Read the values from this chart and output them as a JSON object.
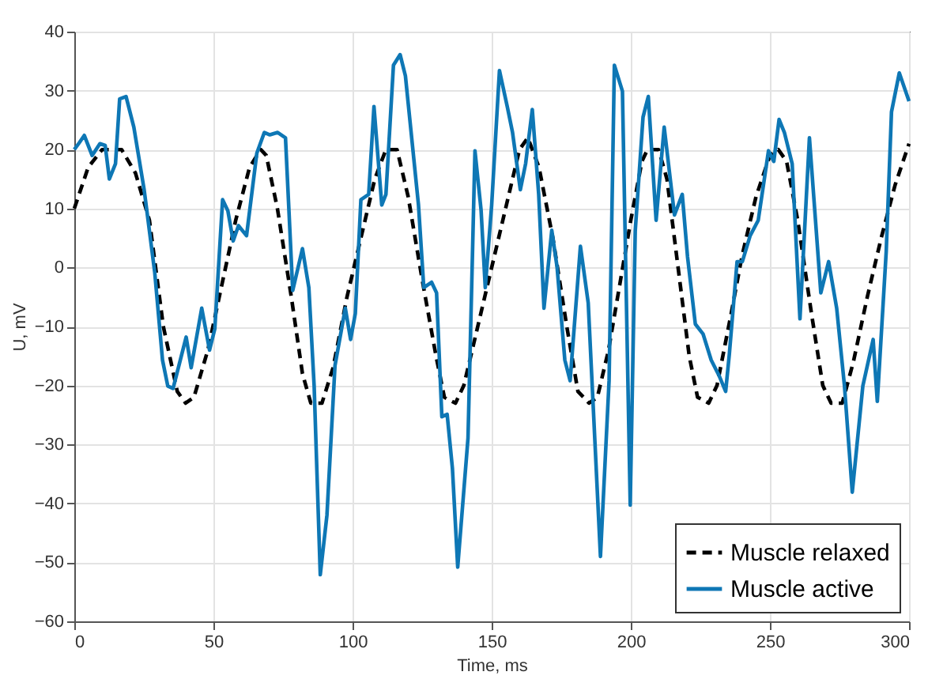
{
  "chart_data": {
    "type": "line",
    "xlabel": "Time, ms",
    "ylabel": "U, mV",
    "xlim": [
      0,
      300
    ],
    "xticks": [
      0,
      50,
      100,
      150,
      200,
      250,
      300
    ],
    "ylim": [
      -60,
      40
    ],
    "yticks": [
      -60,
      -50,
      -40,
      -30,
      -20,
      -10,
      0,
      10,
      20,
      30,
      40
    ],
    "grid": true,
    "legend": "bottom right",
    "series": [
      {
        "name": "Muscle relaxed",
        "color": "#000000",
        "line_style": "dashed",
        "x": [
          0,
          5,
          10,
          17,
          22,
          27,
          32,
          37,
          40,
          43,
          48,
          53,
          58,
          63,
          67,
          69,
          73,
          78,
          82,
          85,
          89,
          93,
          98,
          103,
          108,
          112,
          116,
          120,
          125,
          130,
          133,
          137,
          140,
          145,
          150,
          155,
          160,
          163,
          167,
          172,
          177,
          181,
          185,
          188,
          192,
          196,
          200,
          204,
          206,
          210,
          213,
          217,
          221,
          224,
          228,
          231,
          236,
          240,
          245,
          250,
          253,
          256,
          260,
          265,
          269,
          272,
          276,
          280,
          285,
          290,
          295,
          300
        ],
        "values": [
          10,
          17,
          20,
          20,
          16,
          8,
          -10,
          -21,
          -23,
          -22,
          -14,
          -3,
          8,
          17,
          20,
          19,
          10,
          -5,
          -18,
          -23,
          -23,
          -17,
          -5,
          5,
          15,
          20,
          20,
          12,
          -2,
          -15,
          -22,
          -23,
          -20,
          -10,
          0,
          10,
          20,
          22,
          17,
          5,
          -10,
          -21,
          -23,
          -22,
          -14,
          -3,
          8,
          18,
          20,
          20,
          15,
          0,
          -15,
          -22,
          -23,
          -20,
          -8,
          2,
          12,
          19,
          20,
          18,
          8,
          -8,
          -20,
          -23,
          -23,
          -16,
          -5,
          5,
          14,
          21
        ]
      },
      {
        "name": "Muscle active",
        "color": "#0e77b5",
        "line_style": "solid",
        "x": [
          0,
          1.7,
          3.6,
          6.4,
          9.2,
          11.1,
          12.6,
          14.8,
          16.3,
          18.6,
          21.4,
          25.1,
          28.9,
          31.7,
          33.6,
          35.5,
          40.2,
          42,
          45.8,
          48.6,
          50.5,
          53.3,
          55.2,
          57.1,
          59,
          61.9,
          65.6,
          68.3,
          70.3,
          73.1,
          75.9,
          78.5,
          82,
          84.3,
          86.2,
          88.4,
          90.8,
          93.7,
          97.4,
          99.3,
          101,
          103,
          105.8,
          107.7,
          110.5,
          112,
          114.7,
          117.1,
          119,
          123.7,
          125.6,
          128.4,
          130.2,
          132.1,
          134,
          135.9,
          137.8,
          141.5,
          144,
          146.2,
          147.7,
          150,
          152.8,
          155.6,
          157.5,
          160.3,
          162.2,
          164.6,
          166.9,
          168.8,
          171.6,
          173.5,
          176.3,
          178.2,
          181.9,
          184.7,
          189.1,
          192.2,
          194.1,
          197,
          199.8,
          201.6,
          204.4,
          206.3,
          209.1,
          212,
          215.7,
          218.5,
          220.4,
          223.2,
          226,
          228.9,
          231.7,
          234.1,
          235.4,
          238.2,
          240.1,
          242.9,
          245.8,
          249.5,
          251.4,
          253.3,
          255.2,
          258,
          260.8,
          264.2,
          268.3,
          271.1,
          274,
          276.8,
          279.6,
          283.4,
          287.1,
          288.6,
          291.8,
          293.7,
          296.5,
          300
        ],
        "values": [
          20,
          21.1,
          22.4,
          19,
          21,
          20.7,
          15,
          17.6,
          28.6,
          29,
          23.8,
          13.2,
          -0.8,
          -15.7,
          -20.1,
          -20.5,
          -11.8,
          -17,
          -6.9,
          -14,
          -10.4,
          11.5,
          9.6,
          4.5,
          7.1,
          5.4,
          19.4,
          22.9,
          22.5,
          22.9,
          22,
          -3.9,
          3.2,
          -3.4,
          -20.1,
          -52.1,
          -42,
          -16.6,
          -6.9,
          -12.2,
          -7.8,
          11.5,
          12.4,
          27.3,
          10.6,
          12.4,
          34.3,
          36.1,
          32.5,
          10.6,
          -3.4,
          -2.5,
          -4.3,
          -25.3,
          -24.9,
          -34.1,
          -50.8,
          -28.9,
          19.8,
          9.7,
          -3.4,
          10.6,
          33.4,
          27.3,
          22.9,
          13.2,
          17.6,
          26.8,
          12.4,
          -6.9,
          6.3,
          0.1,
          -15.7,
          -19.2,
          3.6,
          -6,
          -49,
          -19.2,
          34.3,
          29.9,
          -40.3,
          6.2,
          25.5,
          29,
          8,
          23.8,
          8.9,
          12.4,
          1.8,
          -9.6,
          -11.3,
          -15.7,
          -18.3,
          -21,
          -14.8,
          1,
          1,
          5.4,
          8,
          19.8,
          18,
          25.1,
          22.9,
          17.6,
          -8.7,
          22,
          -4.3,
          1,
          -6.9,
          -20.1,
          -38.1,
          -20.1,
          -12.2,
          -22.7,
          2.7,
          26.4,
          33,
          28.2
        ]
      }
    ]
  }
}
